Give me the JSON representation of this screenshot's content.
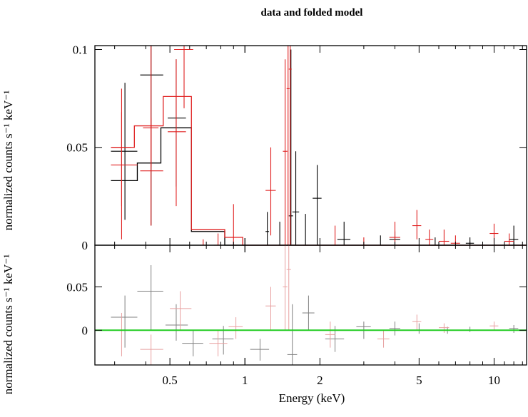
{
  "chart_data": {
    "type": "scatter",
    "title": "data and folded model",
    "xlabel": "Energy (keV)",
    "xscale": "log",
    "xlim": [
      0.25,
      13.5
    ],
    "xticks": [
      {
        "value": 0.5,
        "label": "0.5"
      },
      {
        "value": 1,
        "label": "1"
      },
      {
        "value": 2,
        "label": "2"
      },
      {
        "value": 5,
        "label": "5"
      },
      {
        "value": 10,
        "label": "10"
      }
    ],
    "top_panel": {
      "ylabel": "normalized counts s⁻¹ keV⁻¹",
      "ylim": [
        0,
        0.102
      ],
      "yticks": [
        {
          "value": 0,
          "label": "0"
        },
        {
          "value": 0.05,
          "label": "0.05"
        },
        {
          "value": 0.1,
          "label": "0.1"
        }
      ],
      "series": [
        {
          "color": "#000000",
          "points": [
            {
              "x": 0.33,
              "xlo": 0.29,
              "xhi": 0.37,
              "y": 0.048,
              "ylo": 0.013,
              "yhi": 0.083
            },
            {
              "x": 0.42,
              "xlo": 0.38,
              "xhi": 0.47,
              "y": 0.087,
              "ylo": 0.01,
              "yhi": 0.102
            },
            {
              "x": 0.53,
              "xlo": 0.49,
              "xhi": 0.58,
              "y": 0.065,
              "ylo": 0.03,
              "yhi": 0.095
            },
            {
              "x": 1.23,
              "xlo": 1.21,
              "xhi": 1.25,
              "y": 0.007,
              "ylo": 0.0,
              "yhi": 0.017
            },
            {
              "x": 1.38,
              "xlo": 1.36,
              "xhi": 1.4,
              "y": 0.0,
              "ylo": 0.0,
              "yhi": 0.012
            },
            {
              "x": 1.53,
              "xlo": 1.5,
              "xhi": 1.56,
              "y": 0.015,
              "ylo": 0.0,
              "yhi": 0.1
            },
            {
              "x": 1.6,
              "xlo": 1.55,
              "xhi": 1.65,
              "y": 0.017,
              "ylo": 0.0,
              "yhi": 0.048
            },
            {
              "x": 1.75,
              "xlo": 1.72,
              "xhi": 1.78,
              "y": 0.0,
              "ylo": 0.0,
              "yhi": 0.016
            },
            {
              "x": 1.95,
              "xlo": 1.87,
              "xhi": 2.03,
              "y": 0.024,
              "ylo": 0.0,
              "yhi": 0.041
            },
            {
              "x": 2.5,
              "xlo": 2.35,
              "xhi": 2.65,
              "y": 0.003,
              "ylo": 0.0,
              "yhi": 0.012
            },
            {
              "x": 3.5,
              "xlo": 3.3,
              "xhi": 3.7,
              "y": 0.0,
              "ylo": 0.0,
              "yhi": 0.005
            },
            {
              "x": 4.0,
              "xlo": 3.8,
              "xhi": 4.2,
              "y": 0.003,
              "ylo": 0.0,
              "yhi": 0.007
            },
            {
              "x": 5.8,
              "xlo": 5.6,
              "xhi": 6.0,
              "y": 0.0,
              "ylo": 0.0,
              "yhi": 0.004
            },
            {
              "x": 8.0,
              "xlo": 7.7,
              "xhi": 8.3,
              "y": 0.001,
              "ylo": 0.0,
              "yhi": 0.004
            },
            {
              "x": 12.0,
              "xlo": 11.5,
              "xhi": 12.5,
              "y": 0.003,
              "ylo": 0.0,
              "yhi": 0.01
            }
          ],
          "model_steps": [
            {
              "x0": 0.29,
              "x1": 0.37,
              "y": 0.033
            },
            {
              "x0": 0.37,
              "x1": 0.46,
              "y": 0.042
            },
            {
              "x0": 0.46,
              "x1": 0.61,
              "y": 0.06
            },
            {
              "x0": 0.61,
              "x1": 0.83,
              "y": 0.007
            },
            {
              "x0": 0.83,
              "x1": 13.5,
              "y": 0.0
            }
          ]
        },
        {
          "color": "#e02020",
          "points": [
            {
              "x": 0.32,
              "xlo": 0.29,
              "xhi": 0.35,
              "y": 0.05,
              "ylo": 0.003,
              "yhi": 0.08
            },
            {
              "x": 0.32,
              "xlo": 0.29,
              "xhi": 0.37,
              "y": 0.041,
              "ylo": 0.02,
              "yhi": 0.068
            },
            {
              "x": 0.42,
              "xlo": 0.38,
              "xhi": 0.47,
              "y": 0.038,
              "ylo": 0.01,
              "yhi": 0.065
            },
            {
              "x": 0.42,
              "xlo": 0.39,
              "xhi": 0.45,
              "y": 0.06,
              "ylo": 0.04,
              "yhi": 0.102
            },
            {
              "x": 0.53,
              "xlo": 0.49,
              "xhi": 0.58,
              "y": 0.058,
              "ylo": 0.02,
              "yhi": 0.095
            },
            {
              "x": 0.57,
              "xlo": 0.52,
              "xhi": 0.62,
              "y": 0.1,
              "ylo": 0.07,
              "yhi": 0.102
            },
            {
              "x": 0.68,
              "xlo": 0.66,
              "xhi": 0.7,
              "y": 0.0,
              "ylo": 0.0,
              "yhi": 0.003
            },
            {
              "x": 0.78,
              "xlo": 0.75,
              "xhi": 0.81,
              "y": 0.0,
              "ylo": 0.0,
              "yhi": 0.006
            },
            {
              "x": 0.9,
              "xlo": 0.87,
              "xhi": 0.93,
              "y": 0.0,
              "ylo": 0.0,
              "yhi": 0.021
            },
            {
              "x": 1.27,
              "xlo": 1.21,
              "xhi": 1.33,
              "y": 0.028,
              "ylo": 0.005,
              "yhi": 0.05
            },
            {
              "x": 1.45,
              "xlo": 1.42,
              "xhi": 1.48,
              "y": 0.048,
              "ylo": 0.0,
              "yhi": 0.095
            },
            {
              "x": 1.49,
              "xlo": 1.47,
              "xhi": 1.51,
              "y": 0.08,
              "ylo": 0.0,
              "yhi": 0.102
            },
            {
              "x": 1.52,
              "xlo": 1.5,
              "xhi": 1.54,
              "y": 0.09,
              "ylo": 0.0,
              "yhi": 0.102
            },
            {
              "x": 2.3,
              "xlo": 2.2,
              "xhi": 2.4,
              "y": 0.0,
              "ylo": 0.0,
              "yhi": 0.01
            },
            {
              "x": 3.0,
              "xlo": 2.9,
              "xhi": 3.1,
              "y": 0.0,
              "ylo": 0.0,
              "yhi": 0.004
            },
            {
              "x": 4.0,
              "xlo": 3.8,
              "xhi": 4.2,
              "y": 0.004,
              "ylo": 0.0,
              "yhi": 0.012
            },
            {
              "x": 4.9,
              "xlo": 4.7,
              "xhi": 5.1,
              "y": 0.01,
              "ylo": 0.003,
              "yhi": 0.018
            },
            {
              "x": 5.5,
              "xlo": 5.3,
              "xhi": 5.7,
              "y": 0.003,
              "ylo": 0.0,
              "yhi": 0.008
            },
            {
              "x": 6.3,
              "xlo": 6.0,
              "xhi": 6.6,
              "y": 0.002,
              "ylo": 0.0,
              "yhi": 0.008
            },
            {
              "x": 7.0,
              "xlo": 6.7,
              "xhi": 7.3,
              "y": 0.001,
              "ylo": 0.0,
              "yhi": 0.005
            },
            {
              "x": 10.0,
              "xlo": 9.6,
              "xhi": 10.4,
              "y": 0.006,
              "ylo": 0.001,
              "yhi": 0.011
            },
            {
              "x": 11.5,
              "xlo": 11.0,
              "xhi": 12.0,
              "y": 0.002,
              "ylo": 0.0,
              "yhi": 0.006
            }
          ],
          "model_steps": [
            {
              "x0": 0.29,
              "x1": 0.36,
              "y": 0.05
            },
            {
              "x0": 0.36,
              "x1": 0.47,
              "y": 0.061
            },
            {
              "x0": 0.47,
              "x1": 0.61,
              "y": 0.076
            },
            {
              "x0": 0.61,
              "x1": 0.83,
              "y": 0.008
            },
            {
              "x0": 0.83,
              "x1": 0.98,
              "y": 0.004
            },
            {
              "x0": 0.98,
              "x1": 13.5,
              "y": 0.0
            }
          ]
        }
      ]
    },
    "bottom_panel": {
      "ylabel": "normalized counts s⁻¹ keV⁻¹",
      "ylim": [
        -0.04,
        0.098
      ],
      "yticks": [
        {
          "value": 0,
          "label": "0"
        },
        {
          "value": 0.05,
          "label": "0.05"
        }
      ],
      "zero_line_color": "#22cc22",
      "series": [
        {
          "color": "#808080",
          "points": [
            {
              "x": 0.33,
              "xlo": 0.29,
              "xhi": 0.37,
              "y": 0.015,
              "ylo": -0.02,
              "yhi": 0.04
            },
            {
              "x": 0.42,
              "xlo": 0.37,
              "xhi": 0.47,
              "y": 0.045,
              "ylo": 0.0,
              "yhi": 0.075
            },
            {
              "x": 0.53,
              "xlo": 0.48,
              "xhi": 0.59,
              "y": 0.006,
              "ylo": -0.012,
              "yhi": 0.03
            },
            {
              "x": 0.62,
              "xlo": 0.56,
              "xhi": 0.68,
              "y": -0.015,
              "ylo": -0.03,
              "yhi": 0.0
            },
            {
              "x": 0.82,
              "xlo": 0.74,
              "xhi": 0.9,
              "y": -0.01,
              "ylo": -0.028,
              "yhi": 0.005
            },
            {
              "x": 1.15,
              "xlo": 1.05,
              "xhi": 1.25,
              "y": -0.022,
              "ylo": -0.035,
              "yhi": -0.01
            },
            {
              "x": 1.55,
              "xlo": 1.48,
              "xhi": 1.62,
              "y": -0.028,
              "ylo": -0.04,
              "yhi": 0.03
            },
            {
              "x": 1.8,
              "xlo": 1.7,
              "xhi": 1.9,
              "y": 0.02,
              "ylo": 0.0,
              "yhi": 0.04
            },
            {
              "x": 2.3,
              "xlo": 2.1,
              "xhi": 2.5,
              "y": -0.01,
              "ylo": -0.025,
              "yhi": 0.005
            },
            {
              "x": 3.0,
              "xlo": 2.8,
              "xhi": 3.2,
              "y": 0.004,
              "ylo": -0.01,
              "yhi": 0.01
            },
            {
              "x": 4.0,
              "xlo": 3.8,
              "xhi": 4.2,
              "y": 0.002,
              "ylo": -0.006,
              "yhi": 0.01
            },
            {
              "x": 5.0,
              "xlo": 4.8,
              "xhi": 5.2,
              "y": 0.0,
              "ylo": -0.004,
              "yhi": 0.008
            },
            {
              "x": 6.5,
              "xlo": 6.2,
              "xhi": 6.8,
              "y": 0.0,
              "ylo": -0.004,
              "yhi": 0.004
            },
            {
              "x": 8.0,
              "xlo": 7.7,
              "xhi": 8.3,
              "y": 0.0,
              "ylo": -0.002,
              "yhi": 0.004
            },
            {
              "x": 12.0,
              "xlo": 11.5,
              "xhi": 12.5,
              "y": 0.002,
              "ylo": -0.003,
              "yhi": 0.006
            }
          ]
        },
        {
          "color": "#e8a0a0",
          "points": [
            {
              "x": 0.32,
              "xlo": 0.29,
              "xhi": 0.36,
              "y": 0.0,
              "ylo": -0.03,
              "yhi": 0.02
            },
            {
              "x": 0.42,
              "xlo": 0.38,
              "xhi": 0.47,
              "y": -0.022,
              "ylo": -0.04,
              "yhi": -0.005
            },
            {
              "x": 0.55,
              "xlo": 0.5,
              "xhi": 0.61,
              "y": 0.025,
              "ylo": 0.0,
              "yhi": 0.045
            },
            {
              "x": 0.78,
              "xlo": 0.72,
              "xhi": 0.85,
              "y": -0.015,
              "ylo": -0.03,
              "yhi": 0.0
            },
            {
              "x": 0.92,
              "xlo": 0.86,
              "xhi": 0.98,
              "y": 0.004,
              "ylo": -0.01,
              "yhi": 0.015
            },
            {
              "x": 1.27,
              "xlo": 1.21,
              "xhi": 1.33,
              "y": 0.028,
              "ylo": 0.0,
              "yhi": 0.05
            },
            {
              "x": 1.45,
              "xlo": 1.42,
              "xhi": 1.48,
              "y": 0.05,
              "ylo": 0.0,
              "yhi": 0.098
            },
            {
              "x": 1.5,
              "xlo": 1.47,
              "xhi": 1.53,
              "y": 0.07,
              "ylo": 0.0,
              "yhi": 0.098
            },
            {
              "x": 2.2,
              "xlo": 2.1,
              "xhi": 2.3,
              "y": -0.005,
              "ylo": -0.02,
              "yhi": 0.01
            },
            {
              "x": 3.6,
              "xlo": 3.4,
              "xhi": 3.8,
              "y": -0.01,
              "ylo": -0.02,
              "yhi": 0.0
            },
            {
              "x": 4.9,
              "xlo": 4.7,
              "xhi": 5.1,
              "y": 0.01,
              "ylo": 0.0,
              "yhi": 0.018
            },
            {
              "x": 6.3,
              "xlo": 6.0,
              "xhi": 6.6,
              "y": 0.003,
              "ylo": -0.003,
              "yhi": 0.008
            },
            {
              "x": 10.0,
              "xlo": 9.6,
              "xhi": 10.4,
              "y": 0.005,
              "ylo": 0.0,
              "yhi": 0.01
            }
          ]
        }
      ]
    }
  }
}
